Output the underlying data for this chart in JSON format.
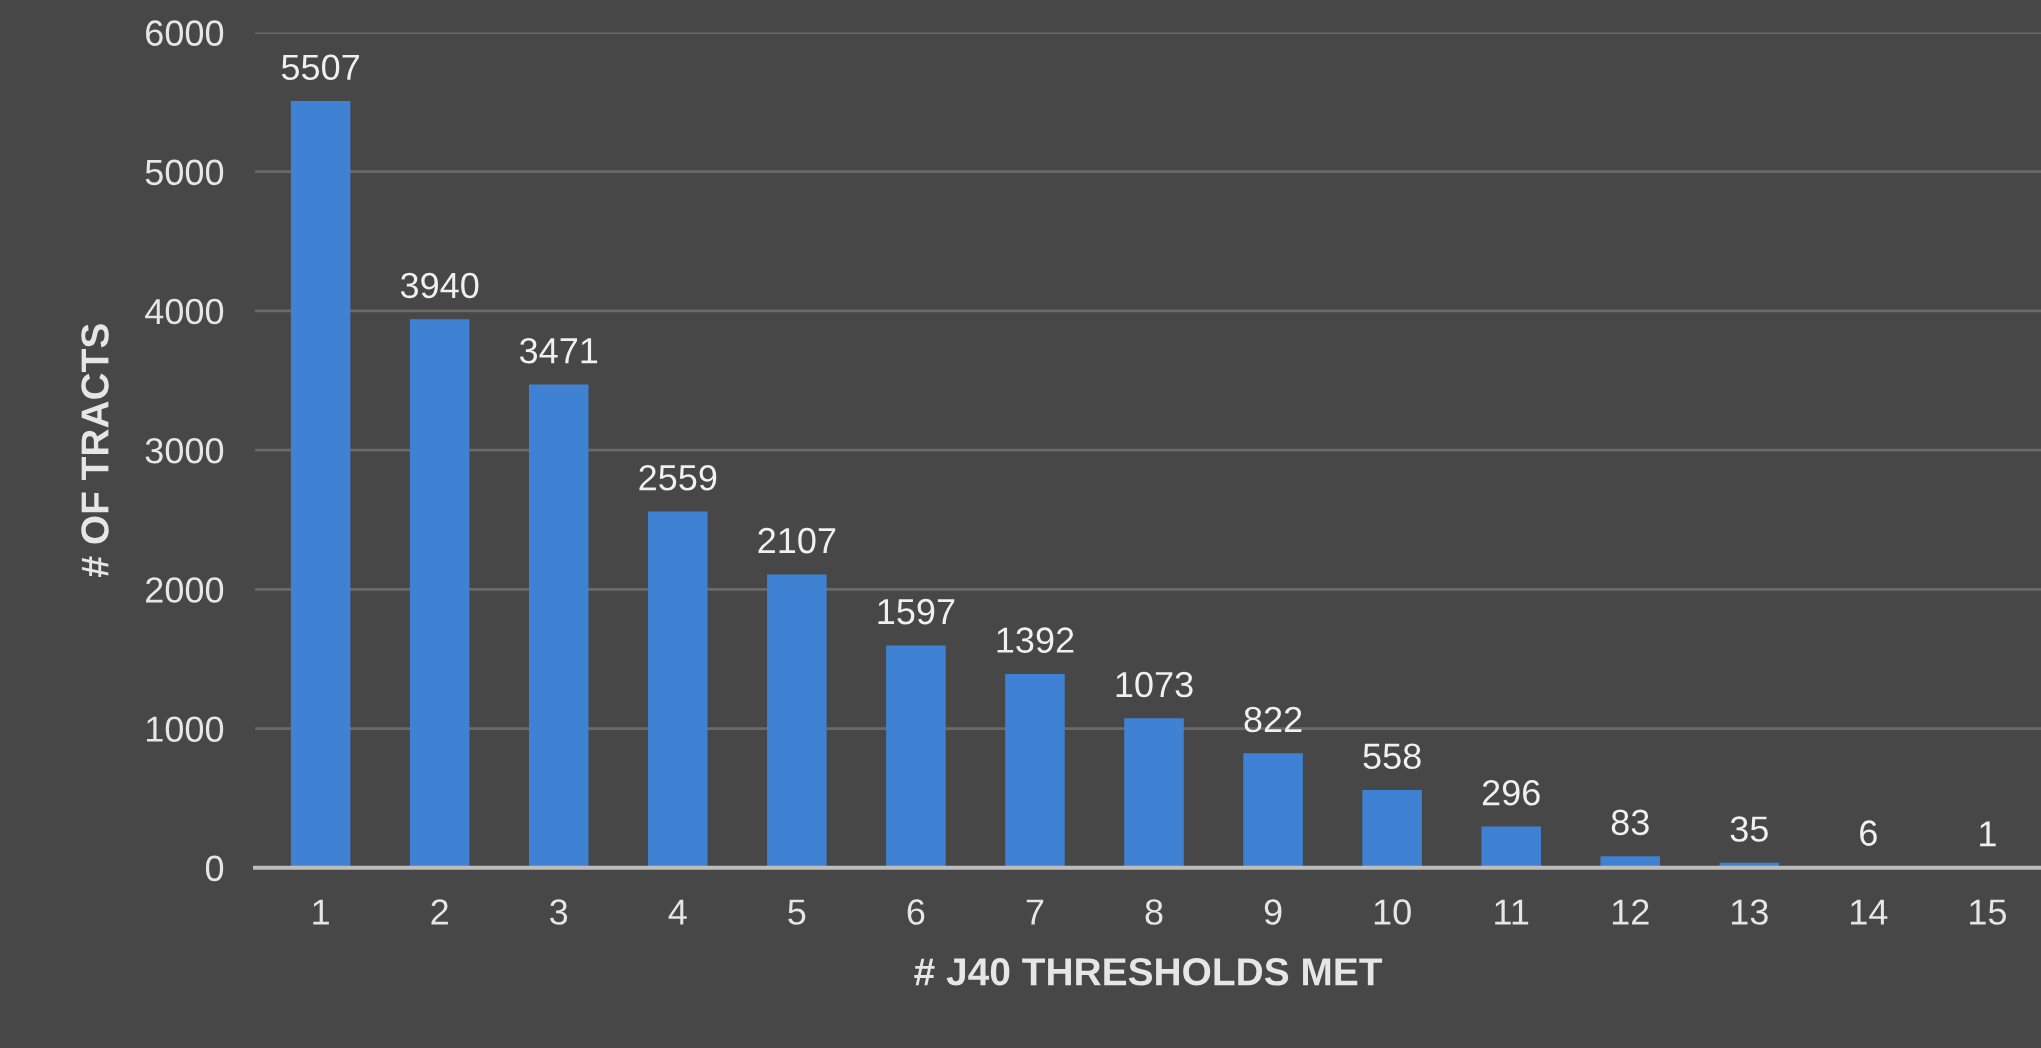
{
  "chart_data": {
    "type": "bar",
    "xlabel": "# J40 THRESHOLDS MET",
    "ylabel": "# OF TRACTS",
    "categories": [
      "1",
      "2",
      "3",
      "4",
      "5",
      "6",
      "7",
      "8",
      "9",
      "10",
      "11",
      "12",
      "13",
      "14",
      "15"
    ],
    "values": [
      5507,
      3940,
      3471,
      2559,
      2107,
      1597,
      1392,
      1073,
      822,
      558,
      296,
      83,
      35,
      6,
      1
    ],
    "color": "#3f82d4",
    "ylim": [
      0,
      6000
    ],
    "yticks": [
      0,
      1000,
      2000,
      3000,
      4000,
      5000,
      6000
    ],
    "grid": "y",
    "data_labels": true
  }
}
